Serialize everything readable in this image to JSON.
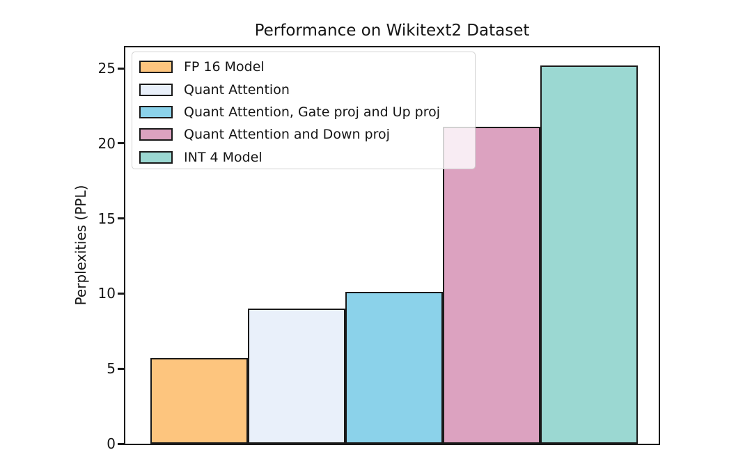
{
  "chart_data": {
    "type": "bar",
    "title": "Performance on Wikitext2 Dataset",
    "xlabel": "",
    "ylabel": "Perplexities (PPL)",
    "categories": [
      "FP 16 Model",
      "Quant Attention",
      "Quant Attention, Gate proj and Up proj",
      "Quant Attention and Down proj",
      "INT 4 Model"
    ],
    "values": [
      5.7,
      9.0,
      10.1,
      21.1,
      25.2
    ],
    "colors": [
      "#FDC57E",
      "#E9F0FA",
      "#8BD2EA",
      "#DCA2C0",
      "#9BD8D2"
    ],
    "bar_edge_color": "#1a1a1a",
    "ylim": [
      0,
      26.4
    ],
    "yticks": [
      0,
      5,
      10,
      15,
      20,
      25
    ],
    "grid": false,
    "legend": {
      "position": "upper left",
      "entries": [
        {
          "label": "FP 16 Model",
          "color": "#FDC57E"
        },
        {
          "label": "Quant Attention",
          "color": "#E9F0FA"
        },
        {
          "label": "Quant Attention, Gate proj and Up proj",
          "color": "#8BD2EA"
        },
        {
          "label": "Quant Attention and Down proj",
          "color": "#DCA2C0"
        },
        {
          "label": "INT 4 Model",
          "color": "#9BD8D2"
        }
      ]
    }
  }
}
